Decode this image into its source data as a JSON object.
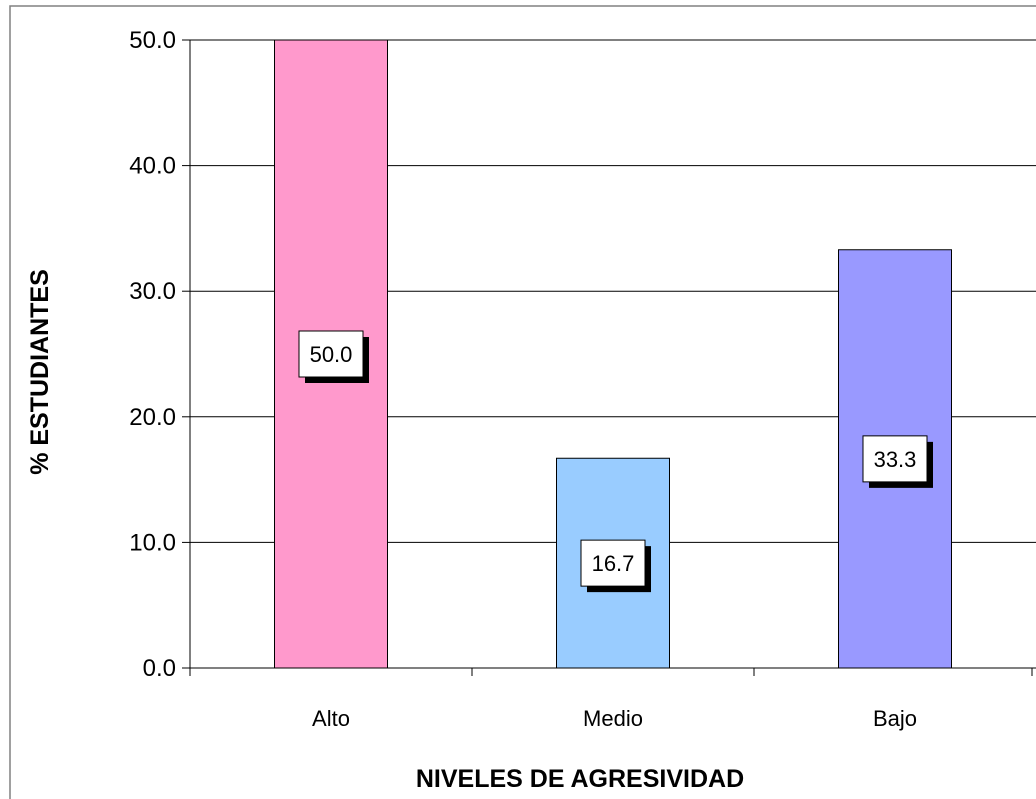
{
  "chart_data": {
    "type": "bar",
    "categories": [
      "Alto",
      "Medio",
      "Bajo"
    ],
    "values": [
      50.0,
      16.7,
      33.3
    ],
    "data_labels": [
      "50.0",
      "16.7",
      "33.3"
    ],
    "colors": [
      "#FF99CC",
      "#99CCFF",
      "#9999FF"
    ],
    "title": "",
    "xlabel": "NIVELES DE AGRESIVIDAD",
    "ylabel": "% ESTUDIANTES",
    "ylim": [
      0,
      50
    ],
    "yticks": [
      "0.0",
      "10.0",
      "20.0",
      "30.0",
      "40.0",
      "50.0"
    ],
    "grid": true,
    "legend": "none"
  }
}
